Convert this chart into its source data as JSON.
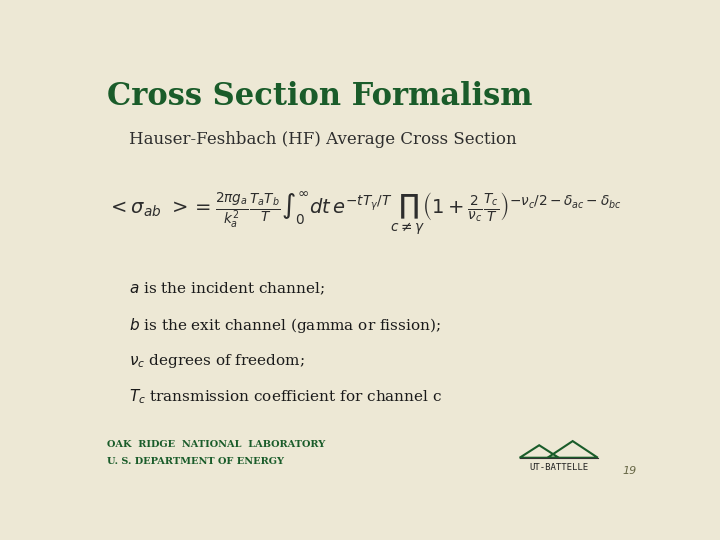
{
  "title": "Cross Section Formalism",
  "title_color": "#1a5c2a",
  "title_fontsize": 22,
  "subtitle": "Hauser-Feshbach (HF) Average Cross Section",
  "subtitle_color": "#2d2d2d",
  "subtitle_fontsize": 12,
  "background_color": "#ede8d5",
  "formula_color": "#2d2d2d",
  "formula_fontsize": 14,
  "description_lines": [
    "$a$ is the incident channel;",
    "$b$ is the exit channel (gamma or fission);",
    "$\\nu_c$ degrees of freedom;",
    "$T_c$ transmission coefficient for channel c"
  ],
  "description_color": "#1a1a1a",
  "description_fontsize": 11,
  "footer_line1": "OAK  RIDGE  NATIONAL  LABORATORY",
  "footer_line2": "U. S. DEPARTMENT OF ENERGY",
  "footer_color": "#1a5c2a",
  "footer_fontsize": 7,
  "page_number": "19",
  "page_number_color": "#666644",
  "mountain_color": "#1a5c2a",
  "logo_text_color": "#222222"
}
